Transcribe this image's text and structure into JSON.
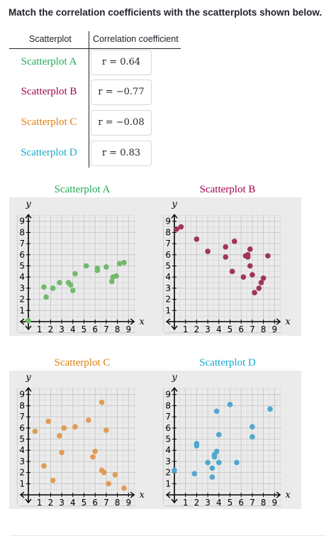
{
  "instructions": "Match the correlation coefficients with the scatterplots shown below.",
  "table": {
    "headers": [
      "Scatterplot",
      "Correlation coefficient"
    ],
    "rows": [
      {
        "label": "Scatterplot A",
        "color": "#1fab54",
        "r": "r = 0.64"
      },
      {
        "label": "Scatterplot B",
        "color": "#9e034e",
        "r": "r = −0.77"
      },
      {
        "label": "Scatterplot C",
        "color": "#e07d10",
        "r": "r = −0.08"
      },
      {
        "label": "Scatterplot D",
        "color": "#11accd",
        "r": "r = 0.83"
      }
    ]
  },
  "colors": {
    "A": "#72b96b",
    "B": "#a03558",
    "C": "#e09b55",
    "D": "#4fa8d0"
  },
  "chart_data": [
    {
      "type": "scatter",
      "title": "Scatterplot A",
      "xlabel": "x",
      "ylabel": "y",
      "xlim": [
        0,
        9
      ],
      "ylim": [
        0,
        9
      ],
      "grid": true,
      "x_ticks": [
        "1",
        "2",
        "3",
        "4",
        "5",
        "6",
        "7",
        "8",
        "9"
      ],
      "y_ticks": [
        "1",
        "2",
        "3",
        "4",
        "5",
        "6",
        "7",
        "8",
        "9"
      ],
      "points": [
        [
          0,
          0.1
        ],
        [
          1.4,
          3.1
        ],
        [
          1.6,
          2.2
        ],
        [
          2.2,
          3.0
        ],
        [
          2.8,
          3.5
        ],
        [
          3.6,
          3.5
        ],
        [
          3.8,
          3.3
        ],
        [
          4.0,
          2.8
        ],
        [
          4.2,
          4.3
        ],
        [
          5.2,
          5.0
        ],
        [
          6.2,
          4.8
        ],
        [
          6.2,
          4.6
        ],
        [
          7.0,
          4.9
        ],
        [
          7.5,
          3.6
        ],
        [
          7.6,
          4.0
        ],
        [
          7.9,
          4.1
        ],
        [
          8.2,
          5.2
        ],
        [
          8.6,
          5.3
        ]
      ]
    },
    {
      "type": "scatter",
      "title": "Scatterplot B",
      "xlabel": "x",
      "ylabel": "y",
      "xlim": [
        0,
        9
      ],
      "ylim": [
        0,
        9
      ],
      "grid": true,
      "x_ticks": [
        "1",
        "2",
        "3",
        "4",
        "5",
        "6",
        "7",
        "8",
        "9"
      ],
      "y_ticks": [
        "1",
        "2",
        "3",
        "4",
        "5",
        "6",
        "7",
        "8",
        "9"
      ],
      "points": [
        [
          0.2,
          8.3
        ],
        [
          0.6,
          8.5
        ],
        [
          2.0,
          7.4
        ],
        [
          3.0,
          6.3
        ],
        [
          4.6,
          6.7
        ],
        [
          4.6,
          5.8
        ],
        [
          5.2,
          4.5
        ],
        [
          5.4,
          7.2
        ],
        [
          6.2,
          4.0
        ],
        [
          6.4,
          5.9
        ],
        [
          6.6,
          6.0
        ],
        [
          6.6,
          5.8
        ],
        [
          6.8,
          6.5
        ],
        [
          6.8,
          5.0
        ],
        [
          7.0,
          4.2
        ],
        [
          7.2,
          2.6
        ],
        [
          7.6,
          3.0
        ],
        [
          7.8,
          3.5
        ],
        [
          8.0,
          3.9
        ],
        [
          8.4,
          5.9
        ]
      ]
    },
    {
      "type": "scatter",
      "title": "Scatterplot C",
      "xlabel": "x",
      "ylabel": "y",
      "xlim": [
        0,
        9
      ],
      "ylim": [
        0,
        9
      ],
      "grid": true,
      "x_ticks": [
        "1",
        "2",
        "3",
        "4",
        "5",
        "6",
        "7",
        "8",
        "9"
      ],
      "y_ticks": [
        "1",
        "2",
        "3",
        "4",
        "5",
        "6",
        "7",
        "8",
        "9"
      ],
      "points": [
        [
          0.6,
          5.7
        ],
        [
          1.4,
          2.6
        ],
        [
          1.8,
          6.6
        ],
        [
          2.2,
          1.3
        ],
        [
          2.8,
          5.3
        ],
        [
          3.0,
          3.8
        ],
        [
          3.2,
          6.0
        ],
        [
          4.2,
          6.1
        ],
        [
          5.4,
          6.7
        ],
        [
          5.8,
          3.4
        ],
        [
          6.0,
          3.9
        ],
        [
          6.6,
          8.3
        ],
        [
          6.6,
          2.2
        ],
        [
          6.8,
          2.0
        ],
        [
          7.0,
          5.8
        ],
        [
          7.2,
          1.0
        ],
        [
          7.8,
          1.8
        ],
        [
          8.6,
          0.6
        ]
      ]
    },
    {
      "type": "scatter",
      "title": "Scatterplot D",
      "xlabel": "x",
      "ylabel": "y",
      "xlim": [
        0,
        9
      ],
      "ylim": [
        0,
        9
      ],
      "grid": true,
      "x_ticks": [
        "1",
        "2",
        "3",
        "4",
        "5",
        "6",
        "7",
        "8",
        "9"
      ],
      "y_ticks": [
        "1",
        "2",
        "3",
        "4",
        "5",
        "6",
        "7",
        "8",
        "9"
      ],
      "points": [
        [
          0,
          2.2
        ],
        [
          1.8,
          1.9
        ],
        [
          2.0,
          4.6
        ],
        [
          2.0,
          4.4
        ],
        [
          3.0,
          2.9
        ],
        [
          3.4,
          2.4
        ],
        [
          3.4,
          1.6
        ],
        [
          3.6,
          3.6
        ],
        [
          3.6,
          3.4
        ],
        [
          3.8,
          3.9
        ],
        [
          3.8,
          7.5
        ],
        [
          4.0,
          2.9
        ],
        [
          4.0,
          5.4
        ],
        [
          5.0,
          8.1
        ],
        [
          5.6,
          2.9
        ],
        [
          7.0,
          5.2
        ],
        [
          7.0,
          6.1
        ],
        [
          8.6,
          7.7
        ]
      ]
    }
  ]
}
